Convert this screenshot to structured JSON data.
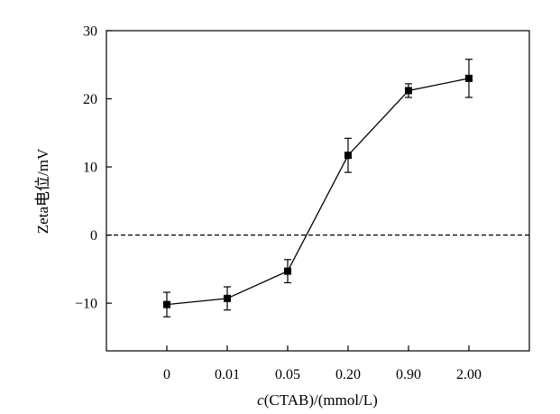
{
  "chart_data": {
    "type": "line",
    "categories": [
      "0",
      "0.01",
      "0.05",
      "0.20",
      "0.90",
      "2.00"
    ],
    "series": [
      {
        "values": [
          -10.2,
          -9.3,
          -5.3,
          11.7,
          21.2,
          23.0
        ],
        "errors": [
          1.8,
          1.7,
          1.7,
          2.5,
          1.0,
          2.8
        ]
      }
    ],
    "ylim": [
      -17,
      30
    ],
    "yticks": [
      -10,
      0,
      10,
      20,
      30
    ],
    "ytick_labels": [
      "−10",
      "0",
      "10",
      "20",
      "30"
    ],
    "reference_line": {
      "y": 0,
      "style": "dashed"
    },
    "xlabel": {
      "italic": "c",
      "rest": "(CTAB)/(mmol/L)"
    },
    "ylabel": "Zeta电位/mV",
    "grid": false,
    "marker": "square",
    "colors": {
      "line": "#000000",
      "marker": "#000000",
      "axis": "#000000"
    }
  }
}
